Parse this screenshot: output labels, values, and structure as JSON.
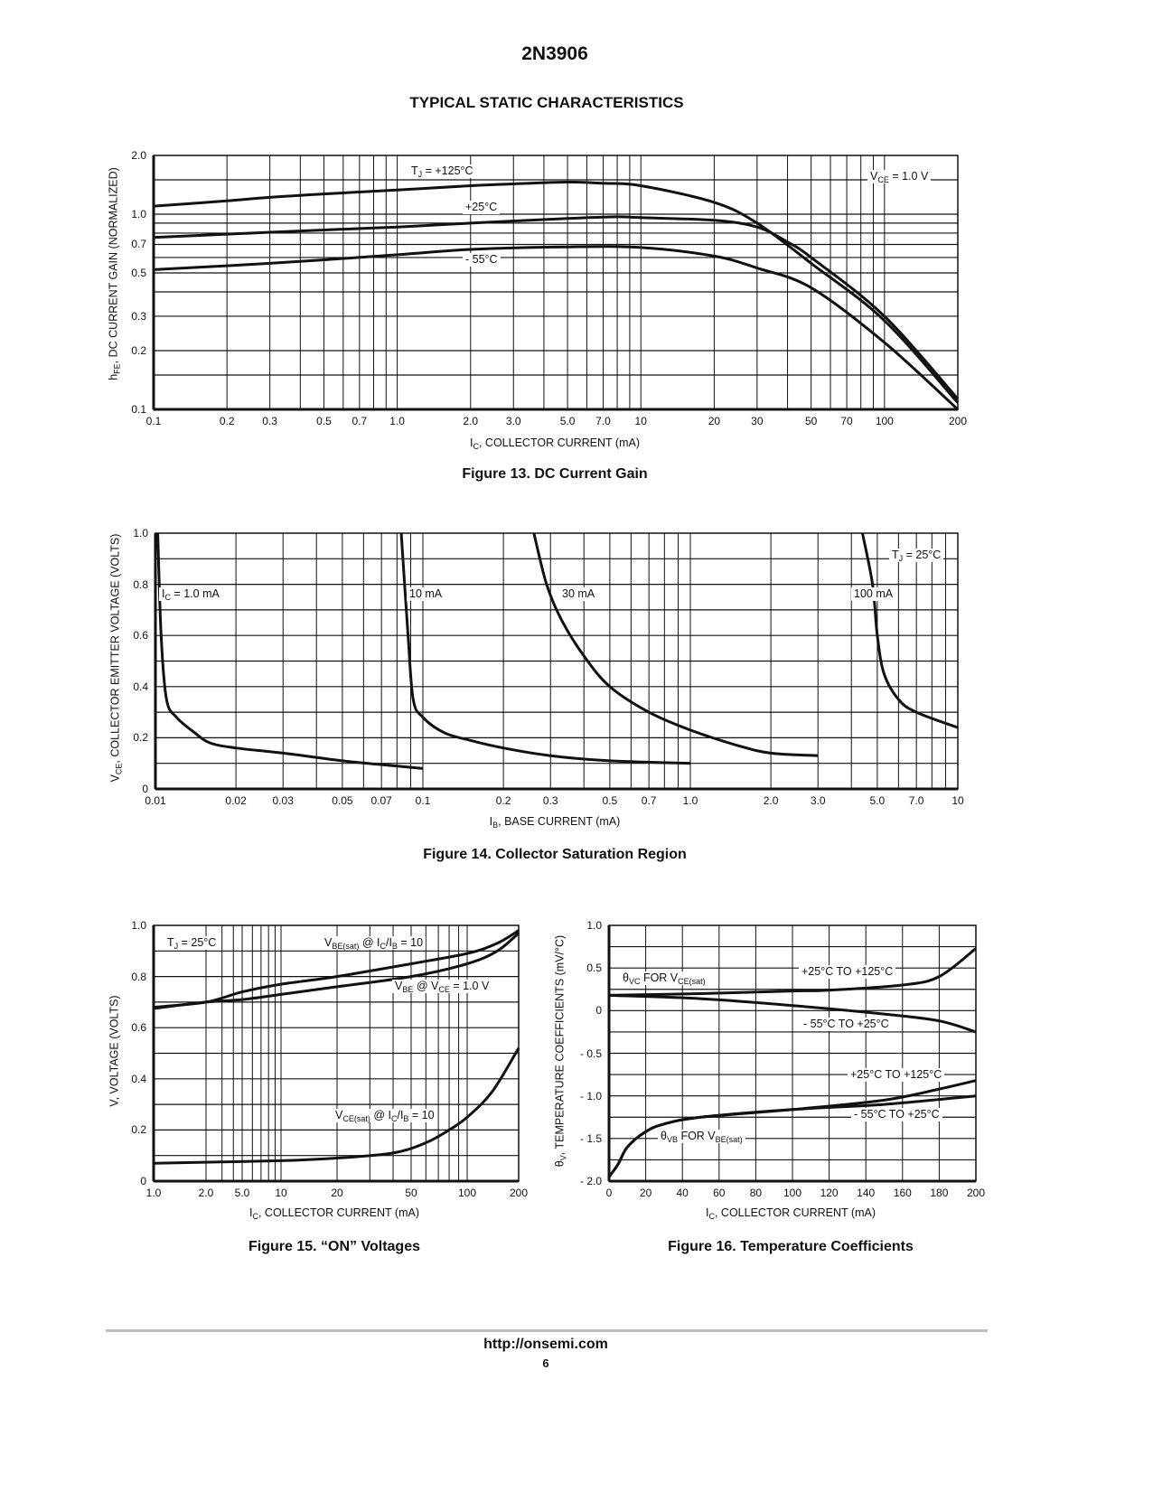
{
  "page": {
    "title": "2N3906",
    "section": "TYPICAL STATIC CHARACTERISTICS",
    "footer_url": "http://onsemi.com",
    "page_number": "6"
  },
  "chart_data": [
    {
      "type": "line",
      "caption": "Figure 13. DC Current Gain",
      "xlabel": [
        {
          "text": "I"
        },
        {
          "text": "C",
          "sub": true
        },
        {
          "text": ", COLLECTOR CURRENT (mA)"
        }
      ],
      "ylabel": [
        {
          "text": "h"
        },
        {
          "text": "FE",
          "sub": true
        },
        {
          "text": ", DC CURRENT GAIN (NORMALIZED)"
        }
      ],
      "x_scale": "log",
      "xlim": [
        0.1,
        200
      ],
      "y_scale": "log",
      "ylim": [
        0.1,
        2.0
      ],
      "grid": true,
      "x_ticks": [
        {
          "v": 0.1,
          "label": "0.1"
        },
        {
          "v": 0.2,
          "label": "0.2"
        },
        {
          "v": 0.3,
          "label": "0.3"
        },
        {
          "v": 0.5,
          "label": "0.5"
        },
        {
          "v": 0.7,
          "label": "0.7"
        },
        {
          "v": 1,
          "label": "1.0"
        },
        {
          "v": 2,
          "label": "2.0"
        },
        {
          "v": 3,
          "label": "3.0"
        },
        {
          "v": 5,
          "label": "5.0"
        },
        {
          "v": 7,
          "label": "7.0"
        },
        {
          "v": 10,
          "label": "10"
        },
        {
          "v": 20,
          "label": "20"
        },
        {
          "v": 30,
          "label": "30"
        },
        {
          "v": 50,
          "label": "50"
        },
        {
          "v": 70,
          "label": "70"
        },
        {
          "v": 100,
          "label": "100"
        },
        {
          "v": 200,
          "label": "200"
        }
      ],
      "y_ticks": [
        {
          "v": 2.0,
          "label": "2.0"
        },
        {
          "v": 1.0,
          "label": "1.0"
        },
        {
          "v": 0.7,
          "label": "0.7"
        },
        {
          "v": 0.5,
          "label": "0.5"
        },
        {
          "v": 0.3,
          "label": "0.3"
        },
        {
          "v": 0.2,
          "label": "0.2"
        },
        {
          "v": 0.1,
          "label": "0.1"
        }
      ],
      "x_grid": [
        0.1,
        0.2,
        0.3,
        0.4,
        0.5,
        0.6,
        0.7,
        0.8,
        0.9,
        1,
        2,
        3,
        4,
        5,
        6,
        7,
        8,
        9,
        10,
        20,
        30,
        40,
        50,
        60,
        70,
        80,
        90,
        100,
        200
      ],
      "y_grid": [
        0.15,
        0.2,
        0.3,
        0.4,
        0.5,
        0.6,
        0.7,
        0.8,
        0.9,
        1.0,
        1.5
      ],
      "annotations": [
        [
          {
            "text": "T"
          },
          {
            "text": "J",
            "sub": true
          },
          {
            "text": " = +125°C"
          }
        ],
        [
          {
            "text": "+25°C"
          }
        ],
        [
          {
            "text": "- 55°C"
          }
        ],
        [
          {
            "text": "V"
          },
          {
            "text": "CE",
            "sub": true
          },
          {
            "text": " = 1.0 V"
          }
        ]
      ],
      "series": [
        {
          "name": "T_J = +125°C",
          "x": [
            0.1,
            0.2,
            0.3,
            0.5,
            1,
            2,
            3,
            5,
            7,
            10,
            20,
            30,
            50,
            100,
            200
          ],
          "y": [
            1.1,
            1.17,
            1.22,
            1.27,
            1.33,
            1.4,
            1.43,
            1.46,
            1.44,
            1.4,
            1.15,
            0.9,
            0.56,
            0.285,
            0.108
          ]
        },
        {
          "name": "+25°C",
          "x": [
            0.1,
            0.2,
            0.5,
            1,
            2,
            5,
            8,
            10,
            20,
            30,
            40,
            50,
            100,
            200
          ],
          "y": [
            0.76,
            0.79,
            0.83,
            0.86,
            0.9,
            0.95,
            0.97,
            0.96,
            0.93,
            0.86,
            0.72,
            0.6,
            0.3,
            0.113
          ]
        },
        {
          "name": "-55°C",
          "x": [
            0.1,
            0.3,
            1,
            2,
            5,
            10,
            20,
            30,
            50,
            100,
            200
          ],
          "y": [
            0.52,
            0.56,
            0.62,
            0.66,
            0.68,
            0.675,
            0.61,
            0.53,
            0.42,
            0.22,
            0.1
          ]
        }
      ]
    },
    {
      "type": "line",
      "caption": "Figure 14. Collector Saturation Region",
      "xlabel": [
        {
          "text": "I"
        },
        {
          "text": "B",
          "sub": true
        },
        {
          "text": ", BASE CURRENT (mA)"
        }
      ],
      "ylabel": [
        {
          "text": "V"
        },
        {
          "text": "CE",
          "sub": true
        },
        {
          "text": ", COLLECTOR EMITTER VOLTAGE (VOLTS)"
        }
      ],
      "x_scale": "log",
      "xlim": [
        0.01,
        10
      ],
      "y_scale": "linear",
      "ylim": [
        0,
        1.0
      ],
      "grid": true,
      "x_ticks": [
        {
          "v": 0.01,
          "label": "0.01"
        },
        {
          "v": 0.02,
          "label": "0.02"
        },
        {
          "v": 0.03,
          "label": "0.03"
        },
        {
          "v": 0.05,
          "label": "0.05"
        },
        {
          "v": 0.07,
          "label": "0.07"
        },
        {
          "v": 0.1,
          "label": "0.1"
        },
        {
          "v": 0.2,
          "label": "0.2"
        },
        {
          "v": 0.3,
          "label": "0.3"
        },
        {
          "v": 0.5,
          "label": "0.5"
        },
        {
          "v": 0.7,
          "label": "0.7"
        },
        {
          "v": 1,
          "label": "1.0"
        },
        {
          "v": 2,
          "label": "2.0"
        },
        {
          "v": 3,
          "label": "3.0"
        },
        {
          "v": 5,
          "label": "5.0"
        },
        {
          "v": 7,
          "label": "7.0"
        },
        {
          "v": 10,
          "label": "10"
        }
      ],
      "y_ticks": [
        {
          "v": 1.0,
          "label": "1.0"
        },
        {
          "v": 0.8,
          "label": "0.8"
        },
        {
          "v": 0.6,
          "label": "0.6"
        },
        {
          "v": 0.4,
          "label": "0.4"
        },
        {
          "v": 0.2,
          "label": "0.2"
        },
        {
          "v": 0,
          "label": "0"
        }
      ],
      "x_grid": [
        0.01,
        0.02,
        0.03,
        0.04,
        0.05,
        0.06,
        0.07,
        0.08,
        0.09,
        0.1,
        0.2,
        0.3,
        0.4,
        0.5,
        0.6,
        0.7,
        0.8,
        0.9,
        1,
        2,
        3,
        4,
        5,
        6,
        7,
        8,
        9,
        10
      ],
      "y_grid": [
        0.1,
        0.2,
        0.3,
        0.4,
        0.5,
        0.6,
        0.7,
        0.8,
        0.9
      ],
      "annotations": [
        [
          {
            "text": "I"
          },
          {
            "text": "C",
            "sub": true
          },
          {
            "text": " = 1.0 mA"
          }
        ],
        [
          {
            "text": "10 mA"
          }
        ],
        [
          {
            "text": "30 mA"
          }
        ],
        [
          {
            "text": "100 mA"
          }
        ],
        [
          {
            "text": "T"
          },
          {
            "text": "J",
            "sub": true
          },
          {
            "text": " = 25°C"
          }
        ]
      ],
      "series": [
        {
          "name": "I_C = 1.0 mA",
          "x": [
            0.0102,
            0.0105,
            0.011,
            0.012,
            0.014,
            0.016,
            0.02,
            0.03,
            0.05,
            0.07,
            0.1
          ],
          "y": [
            1.0,
            0.6,
            0.35,
            0.28,
            0.22,
            0.18,
            0.16,
            0.14,
            0.11,
            0.095,
            0.08
          ]
        },
        {
          "name": "10 mA",
          "x": [
            0.083,
            0.088,
            0.092,
            0.1,
            0.12,
            0.15,
            0.2,
            0.3,
            0.5,
            1.0
          ],
          "y": [
            1.0,
            0.6,
            0.35,
            0.28,
            0.22,
            0.19,
            0.16,
            0.13,
            0.11,
            0.1
          ]
        },
        {
          "name": "30 mA",
          "x": [
            0.26,
            0.29,
            0.33,
            0.4,
            0.5,
            0.7,
            1.0,
            1.5,
            2,
            3
          ],
          "y": [
            1.0,
            0.8,
            0.66,
            0.52,
            0.4,
            0.3,
            0.23,
            0.17,
            0.14,
            0.13
          ]
        },
        {
          "name": "100 mA",
          "x": [
            4.4,
            4.8,
            5.0,
            5.3,
            6,
            7,
            10
          ],
          "y": [
            1.0,
            0.8,
            0.6,
            0.45,
            0.35,
            0.3,
            0.24
          ]
        }
      ]
    },
    {
      "type": "line",
      "caption": "Figure 15. “ON” Voltages",
      "xlabel": [
        {
          "text": "I"
        },
        {
          "text": "C",
          "sub": true
        },
        {
          "text": ", COLLECTOR CURRENT (mA)"
        }
      ],
      "ylabel": [
        {
          "text": "V, VOLTAGE (VOLTS)"
        }
      ],
      "x_scale": "log",
      "xlim": [
        1,
        200
      ],
      "y_scale": "linear",
      "ylim": [
        0,
        1.0
      ],
      "grid": true,
      "x_ticks": [
        {
          "v": 1,
          "label": "1.0"
        },
        {
          "v": 2,
          "label": "2.0"
        },
        {
          "v": 5,
          "label": "5.0"
        },
        {
          "v": 10,
          "label": "10"
        },
        {
          "v": 20,
          "label": "20"
        },
        {
          "v": 50,
          "label": "50"
        },
        {
          "v": 100,
          "label": "100"
        },
        {
          "v": 200,
          "label": "200"
        }
      ],
      "y_ticks": [
        {
          "v": 1.0,
          "label": "1.0"
        },
        {
          "v": 0.8,
          "label": "0.8"
        },
        {
          "v": 0.6,
          "label": "0.6"
        },
        {
          "v": 0.4,
          "label": "0.4"
        },
        {
          "v": 0.2,
          "label": "0.2"
        },
        {
          "v": 0,
          "label": "0"
        }
      ],
      "x_grid": [
        1,
        2,
        3,
        4,
        5,
        6,
        7,
        8,
        9,
        10,
        20,
        30,
        40,
        50,
        60,
        70,
        80,
        90,
        100,
        200
      ],
      "y_grid": [
        0.1,
        0.2,
        0.3,
        0.4,
        0.5,
        0.6,
        0.7,
        0.8,
        0.9
      ],
      "annotations": [
        [
          {
            "text": "T"
          },
          {
            "text": "J",
            "sub": true
          },
          {
            "text": " = 25°C"
          }
        ],
        [
          {
            "text": "V"
          },
          {
            "text": "BE(sat)",
            "sub": true
          },
          {
            "text": " @ I"
          },
          {
            "text": "C",
            "sub": true
          },
          {
            "text": "/I"
          },
          {
            "text": "B",
            "sub": true
          },
          {
            "text": " = 10"
          }
        ],
        [
          {
            "text": "V"
          },
          {
            "text": "BE",
            "sub": true
          },
          {
            "text": " @ V"
          },
          {
            "text": "CE",
            "sub": true
          },
          {
            "text": " = 1.0 V"
          }
        ],
        [
          {
            "text": "V"
          },
          {
            "text": "CE(sat)",
            "sub": true
          },
          {
            "text": " @ I"
          },
          {
            "text": "C",
            "sub": true
          },
          {
            "text": "/I"
          },
          {
            "text": "B",
            "sub": true
          },
          {
            "text": " = 10"
          }
        ]
      ],
      "series": [
        {
          "name": "V_BE(sat) @ I_C/I_B = 10",
          "x": [
            1,
            2,
            5,
            10,
            20,
            50,
            100,
            150,
            200
          ],
          "y": [
            0.68,
            0.7,
            0.74,
            0.77,
            0.8,
            0.85,
            0.89,
            0.93,
            0.98
          ]
        },
        {
          "name": "V_BE @ V_CE = 1.0 V",
          "x": [
            1,
            2,
            5,
            10,
            20,
            50,
            100,
            150,
            200
          ],
          "y": [
            0.675,
            0.7,
            0.71,
            0.73,
            0.76,
            0.8,
            0.85,
            0.9,
            0.97
          ]
        },
        {
          "name": "V_CE(sat) @ I_C/I_B = 10",
          "x": [
            1,
            10,
            20,
            40,
            60,
            80,
            100,
            140,
            200
          ],
          "y": [
            0.07,
            0.08,
            0.09,
            0.11,
            0.15,
            0.2,
            0.25,
            0.35,
            0.52
          ]
        }
      ]
    },
    {
      "type": "line",
      "caption": "Figure 16. Temperature Coefficients",
      "xlabel": [
        {
          "text": "I"
        },
        {
          "text": "C",
          "sub": true
        },
        {
          "text": ", COLLECTOR CURRENT (mA)"
        }
      ],
      "ylabel": [
        {
          "text": "θ"
        },
        {
          "text": "V",
          "sub": true
        },
        {
          "text": ", TEMPERATURE COEFFICIENTS (mV/°C)"
        }
      ],
      "x_scale": "linear",
      "xlim": [
        0,
        200
      ],
      "y_scale": "linear",
      "ylim": [
        -2.0,
        1.0
      ],
      "grid": true,
      "x_ticks": [
        {
          "v": 0,
          "label": "0"
        },
        {
          "v": 20,
          "label": "20"
        },
        {
          "v": 40,
          "label": "40"
        },
        {
          "v": 60,
          "label": "60"
        },
        {
          "v": 80,
          "label": "80"
        },
        {
          "v": 100,
          "label": "100"
        },
        {
          "v": 120,
          "label": "120"
        },
        {
          "v": 140,
          "label": "140"
        },
        {
          "v": 160,
          "label": "160"
        },
        {
          "v": 180,
          "label": "180"
        },
        {
          "v": 200,
          "label": "200"
        }
      ],
      "y_ticks": [
        {
          "v": 1.0,
          "label": "1.0"
        },
        {
          "v": 0.5,
          "label": "0.5"
        },
        {
          "v": 0,
          "label": "0"
        },
        {
          "v": -0.5,
          "label": "- 0.5"
        },
        {
          "v": -1.0,
          "label": "- 1.0"
        },
        {
          "v": -1.5,
          "label": "- 1.5"
        },
        {
          "v": -2.0,
          "label": "- 2.0"
        }
      ],
      "x_grid": [
        20,
        40,
        60,
        80,
        100,
        120,
        140,
        160,
        180
      ],
      "y_grid": [
        0.75,
        0.5,
        0.25,
        0,
        -0.25,
        -0.5,
        -0.75,
        -1.0,
        -1.25,
        -1.5,
        -1.75
      ],
      "annotations": [
        [
          {
            "text": "θ"
          },
          {
            "text": "VC",
            "sub": true
          },
          {
            "text": " FOR V"
          },
          {
            "text": "CE(sat)",
            "sub": true
          }
        ],
        [
          {
            "text": "+25°C TO +125°C"
          }
        ],
        [
          {
            "text": "- 55°C TO +25°C"
          }
        ],
        [
          {
            "text": "+25°C TO +125°C"
          }
        ],
        [
          {
            "text": "- 55°C TO +25°C"
          }
        ],
        [
          {
            "text": "θ"
          },
          {
            "text": "VB",
            "sub": true
          },
          {
            "text": " FOR V"
          },
          {
            "text": "BE(sat)",
            "sub": true
          }
        ]
      ],
      "series": [
        {
          "name": "θVC +25°C TO +125°C",
          "x": [
            0,
            50,
            100,
            120,
            160,
            180,
            200
          ],
          "y": [
            0.18,
            0.2,
            0.23,
            0.24,
            0.3,
            0.4,
            0.73
          ]
        },
        {
          "name": "θVC -55°C TO +25°C",
          "x": [
            0,
            50,
            100,
            150,
            180,
            200
          ],
          "y": [
            0.18,
            0.14,
            0.06,
            -0.04,
            -0.12,
            -0.25
          ]
        },
        {
          "name": "θVB +25°C TO +125°C",
          "x": [
            0,
            5,
            10,
            20,
            30,
            50,
            100,
            150,
            180,
            200
          ],
          "y": [
            -1.95,
            -1.8,
            -1.6,
            -1.42,
            -1.33,
            -1.25,
            -1.16,
            -1.05,
            -0.92,
            -0.82
          ]
        },
        {
          "name": "θVB -55°C TO +25°C",
          "x": [
            0,
            5,
            10,
            20,
            30,
            50,
            100,
            150,
            200
          ],
          "y": [
            -1.95,
            -1.8,
            -1.6,
            -1.42,
            -1.33,
            -1.25,
            -1.16,
            -1.1,
            -1.0
          ]
        }
      ]
    }
  ]
}
